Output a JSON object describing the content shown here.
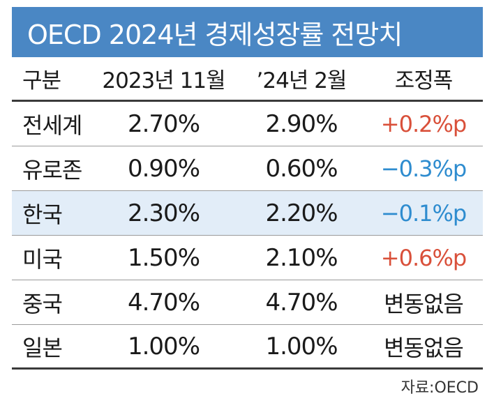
{
  "title": "OECD 2024년 경제성장률 전망치",
  "headers": [
    "구분",
    "2023년 11월",
    "’24년 2월",
    "조정폭"
  ],
  "rows": [
    {
      "region": "전세계",
      "nov2023": "2.70%",
      "feb2024": "2.90%",
      "change": "+0.2%p",
      "trend": "up"
    },
    {
      "region": "유로존",
      "nov2023": "0.90%",
      "feb2024": "0.60%",
      "change": "−0.3%p",
      "trend": "down"
    },
    {
      "region": "한국",
      "nov2023": "2.30%",
      "feb2024": "2.20%",
      "change": "−0.1%p",
      "trend": "down"
    },
    {
      "region": "미국",
      "nov2023": "1.50%",
      "feb2024": "2.10%",
      "change": "+0.6%p",
      "trend": "up"
    },
    {
      "region": "중국",
      "nov2023": "4.70%",
      "feb2024": "4.70%",
      "change": "변동없음",
      "trend": "flat"
    },
    {
      "region": "일본",
      "nov2023": "1.00%",
      "feb2024": "1.00%",
      "change": "변동없음",
      "trend": "flat"
    }
  ],
  "highlight_row": "한국",
  "source": "자료:OECD",
  "colors": {
    "title_bg": "#4a87c4",
    "highlight_bg": "#e2edf8",
    "positive": "#d9503a",
    "negative": "#2e8ccf"
  }
}
